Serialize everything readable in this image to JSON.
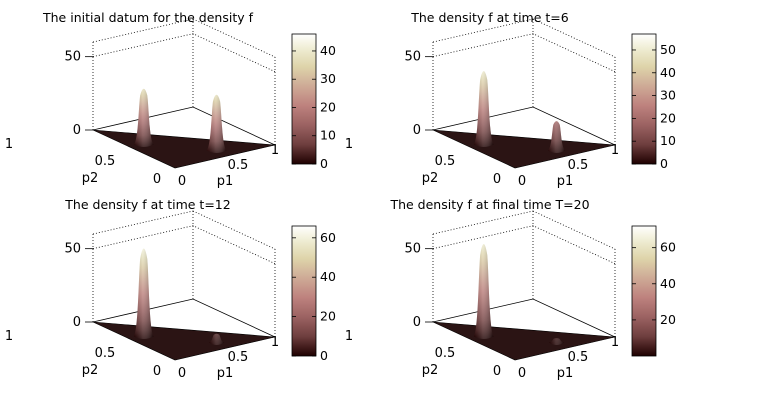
{
  "figure": {
    "colormap": "pink",
    "colors": {
      "background": "#ffffff",
      "floor": "#2b1414",
      "grid": "#000000"
    }
  },
  "chart_data": [
    {
      "type": "surface3d",
      "title": "The initial datum for the density f",
      "xlabel": "p1",
      "ylabel": "p2",
      "x_ticks": [
        "0",
        "0.5",
        "1"
      ],
      "y_ticks": [
        "0",
        "0.5",
        "1"
      ],
      "z_ticks": [
        "0",
        "50"
      ],
      "zlim": [
        0,
        60
      ],
      "colorbar": {
        "min": 0,
        "max": 46,
        "ticks": [
          "0",
          "10",
          "20",
          "30",
          "40"
        ]
      },
      "peaks": [
        {
          "name": "peak-near-p2-axis",
          "p1": 0.13,
          "p2": 0.54,
          "height": 38,
          "width": 0.09
        },
        {
          "name": "peak-near-p1-axis",
          "p1": 0.53,
          "p2": 0.14,
          "height": 38,
          "width": 0.09
        }
      ]
    },
    {
      "type": "surface3d",
      "title": "The density f at time t=6",
      "xlabel": "p1",
      "ylabel": "p2",
      "x_ticks": [
        "0",
        "0.5",
        "1"
      ],
      "y_ticks": [
        "0",
        "0.5",
        "1"
      ],
      "z_ticks": [
        "0",
        "50"
      ],
      "zlim": [
        0,
        60
      ],
      "colorbar": {
        "min": 0,
        "max": 57,
        "ticks": [
          "0",
          "10",
          "20",
          "30",
          "40",
          "50"
        ]
      },
      "peaks": [
        {
          "name": "peak-near-p2-axis",
          "p1": 0.13,
          "p2": 0.54,
          "height": 50,
          "width": 0.09
        },
        {
          "name": "peak-near-p1-axis",
          "p1": 0.53,
          "p2": 0.14,
          "height": 20,
          "width": 0.08
        }
      ]
    },
    {
      "type": "surface3d",
      "title": "The density f at time t=12",
      "xlabel": "p1",
      "ylabel": "p2",
      "x_ticks": [
        "0",
        "0.5",
        "1"
      ],
      "y_ticks": [
        "0",
        "0.5",
        "1"
      ],
      "z_ticks": [
        "0",
        "50"
      ],
      "zlim": [
        0,
        60
      ],
      "colorbar": {
        "min": 0,
        "max": 66,
        "ticks": [
          "0",
          "20",
          "40",
          "60"
        ]
      },
      "peaks": [
        {
          "name": "peak-near-p2-axis",
          "p1": 0.13,
          "p2": 0.54,
          "height": 60,
          "width": 0.09
        },
        {
          "name": "peak-near-p1-axis",
          "p1": 0.53,
          "p2": 0.14,
          "height": 6,
          "width": 0.07
        }
      ]
    },
    {
      "type": "surface3d",
      "title": "The density f at final time T=20",
      "xlabel": "p1",
      "ylabel": "p2",
      "x_ticks": [
        "0",
        "0.5",
        "1"
      ],
      "y_ticks": [
        "0",
        "0.5",
        "1"
      ],
      "z_ticks": [
        "0",
        "50"
      ],
      "zlim": [
        0,
        60
      ],
      "colorbar": {
        "min": 0,
        "max": 72,
        "ticks": [
          "20",
          "40",
          "60"
        ]
      },
      "peaks": [
        {
          "name": "peak-near-p2-axis",
          "p1": 0.13,
          "p2": 0.54,
          "height": 63,
          "width": 0.09
        },
        {
          "name": "peak-near-p1-axis",
          "p1": 0.53,
          "p2": 0.14,
          "height": 3,
          "width": 0.07
        }
      ]
    }
  ]
}
